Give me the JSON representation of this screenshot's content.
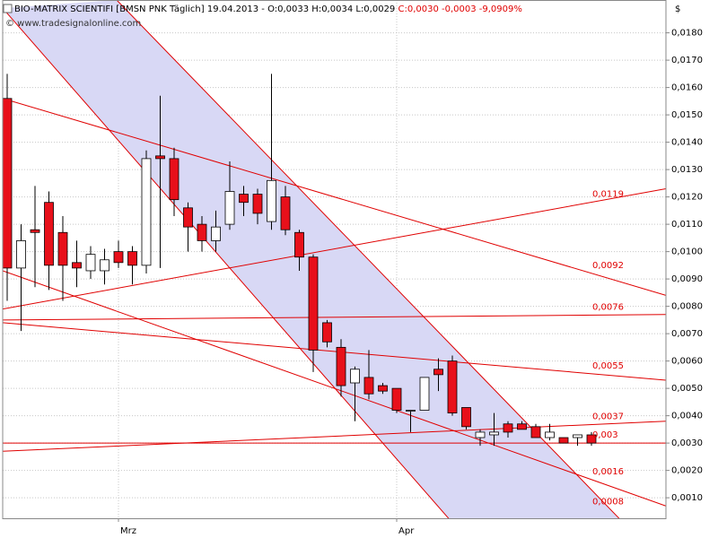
{
  "chart_data": {
    "type": "candlestick",
    "title": "BIO-MATRIX SCIENTIFI [BMSN PNK  Täglich] 19.04.2013 - O:0,0033 H:0,0034 L:0,0029",
    "title_change": "C:0,0030 -0,0003 -9,0909%",
    "watermark": "© www.tradesignalonline.com",
    "y_unit": "$",
    "categories": [
      null,
      null,
      null,
      null,
      null,
      null,
      null,
      null,
      "Mrz",
      null,
      null,
      null,
      null,
      null,
      null,
      null,
      null,
      null,
      null,
      null,
      null,
      null,
      null,
      null,
      null,
      null,
      null,
      null,
      "Apr",
      null,
      null,
      null,
      null,
      null,
      null,
      null,
      null,
      null,
      null,
      null,
      null,
      null,
      null
    ],
    "open": [
      0.0156,
      0.0094,
      0.0108,
      0.0118,
      0.0107,
      0.0096,
      0.0093,
      0.0093,
      0.01,
      0.01,
      0.0095,
      0.0135,
      0.0134,
      0.0116,
      0.011,
      0.0104,
      0.011,
      0.0121,
      0.0121,
      0.0111,
      0.012,
      0.0107,
      0.0098,
      0.0074,
      0.0065,
      0.0052,
      0.0054,
      0.0051,
      0.005,
      0.0042,
      0.0042,
      0.0057,
      0.006,
      0.0043,
      0.0032,
      0.0033,
      0.0037,
      0.0037,
      0.0036,
      0.0032,
      0.0032,
      0.0032,
      0.0033
    ],
    "high": [
      0.0165,
      0.011,
      0.0124,
      0.0122,
      0.0113,
      0.0104,
      0.0102,
      0.0101,
      0.0104,
      0.0102,
      0.0137,
      0.0157,
      0.0138,
      0.0118,
      0.0113,
      0.0115,
      0.0133,
      0.0124,
      0.0123,
      0.0165,
      0.0124,
      0.0108,
      0.0099,
      0.0075,
      0.0068,
      0.0058,
      0.0064,
      0.0052,
      0.005,
      0.0042,
      0.0054,
      0.0061,
      0.0062,
      0.0043,
      0.0035,
      0.0041,
      0.0038,
      0.0038,
      0.0037,
      0.0037,
      0.0032,
      0.0033,
      0.0034
    ],
    "low": [
      0.0082,
      0.0071,
      0.0087,
      0.0086,
      0.0082,
      0.0087,
      0.009,
      0.0088,
      0.0094,
      0.0088,
      0.0092,
      0.0094,
      0.0113,
      0.01,
      0.01,
      0.01,
      0.0108,
      0.0113,
      0.011,
      0.0108,
      0.0106,
      0.0093,
      0.0056,
      0.0065,
      0.0047,
      0.0038,
      0.0046,
      0.0048,
      0.0041,
      0.0034,
      0.0042,
      0.0049,
      0.004,
      0.0035,
      0.0029,
      0.0029,
      0.0032,
      0.0035,
      0.0032,
      0.0031,
      0.003,
      0.0029,
      0.0029
    ],
    "close": [
      0.0094,
      0.0104,
      0.0107,
      0.0095,
      0.0095,
      0.0094,
      0.0099,
      0.0097,
      0.0096,
      0.0095,
      0.0134,
      0.0134,
      0.0119,
      0.0109,
      0.0104,
      0.0109,
      0.0122,
      0.0118,
      0.0114,
      0.0126,
      0.0108,
      0.0098,
      0.0064,
      0.0067,
      0.0051,
      0.0057,
      0.0048,
      0.0049,
      0.0042,
      0.0042,
      0.0054,
      0.0055,
      0.0041,
      0.0036,
      0.0034,
      0.0034,
      0.0034,
      0.0035,
      0.0032,
      0.0034,
      0.003,
      0.0033,
      0.003
    ],
    "up_color": "#ffffff",
    "down_color": "#e8101a",
    "line_color": "#e00000",
    "channel_fill": "#d8d8f5",
    "ylim": [
      0.00025,
      0.0192
    ],
    "yticks": [
      {
        "value": 0.001,
        "label": "0,0010"
      },
      {
        "value": 0.002,
        "label": "0,0020"
      },
      {
        "value": 0.003,
        "label": "0,0030"
      },
      {
        "value": 0.004,
        "label": "0,0040"
      },
      {
        "value": 0.005,
        "label": "0,0050"
      },
      {
        "value": 0.006,
        "label": "0,0060"
      },
      {
        "value": 0.007,
        "label": "0,0070"
      },
      {
        "value": 0.008,
        "label": "0,0080"
      },
      {
        "value": 0.009,
        "label": "0,0090"
      },
      {
        "value": 0.01,
        "label": "0,0100"
      },
      {
        "value": 0.011,
        "label": "0,0110"
      },
      {
        "value": 0.012,
        "label": "0,0120"
      },
      {
        "value": 0.013,
        "label": "0,0130"
      },
      {
        "value": 0.014,
        "label": "0,0140"
      },
      {
        "value": 0.015,
        "label": "0,0150"
      },
      {
        "value": 0.016,
        "label": "0,0160"
      },
      {
        "value": 0.017,
        "label": "0,0170"
      },
      {
        "value": 0.018,
        "label": "0,0180"
      }
    ],
    "grid": true,
    "channel": {
      "upper": [
        [
          7.87,
          0.0192
        ],
        [
          44.0,
          0.00024
        ]
      ],
      "lower": [
        [
          -0.32,
          0.0189
        ],
        [
          31.74,
          0.00024
        ]
      ],
      "label": "0,0008"
    },
    "trend_lines": [
      {
        "label": "0,0119",
        "points": [
          [
            -0.32,
            0.0079
          ],
          [
            47.35,
            0.0123
          ]
        ]
      },
      {
        "label": "0,0092",
        "points": [
          [
            -0.32,
            0.0156
          ],
          [
            47.35,
            0.0084
          ]
        ]
      },
      {
        "label": "0,0076",
        "points": [
          [
            -0.32,
            0.0075
          ],
          [
            47.35,
            0.0077
          ]
        ]
      },
      {
        "label": "0,0055",
        "points": [
          [
            -0.32,
            0.0074
          ],
          [
            47.35,
            0.0053
          ]
        ]
      },
      {
        "label": "0,0037",
        "points": [
          [
            -0.32,
            0.0027
          ],
          [
            47.35,
            0.0038
          ]
        ]
      },
      {
        "label": "0,003",
        "points": [
          [
            -0.32,
            0.003
          ],
          [
            47.35,
            0.003
          ]
        ]
      },
      {
        "label": "0,0016",
        "points": [
          [
            -0.32,
            0.0093
          ],
          [
            47.35,
            0.0007
          ]
        ]
      }
    ]
  }
}
